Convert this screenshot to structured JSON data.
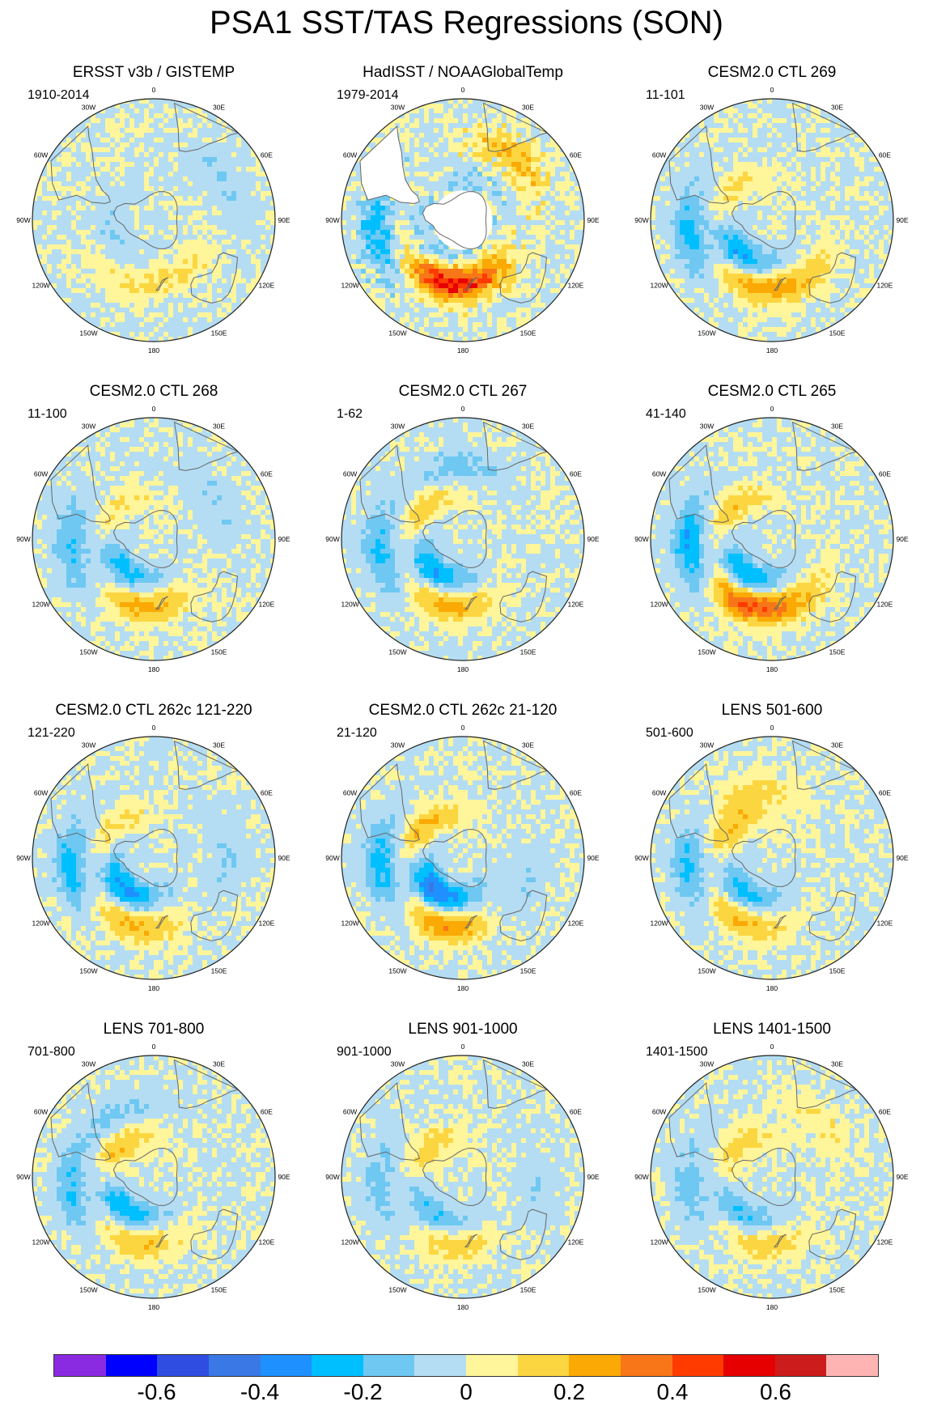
{
  "title": "PSA1 SST/TAS Regressions (SON)",
  "longitude_labels": [
    "0",
    "30E",
    "60E",
    "90E",
    "120E",
    "150E",
    "180",
    "150W",
    "120W",
    "90W",
    "60W",
    "30W"
  ],
  "panels": [
    {
      "title": "ERSST v3b / GISTEMP",
      "years": "1910-2014",
      "dataset": "ersst",
      "anomaly_centers": [
        {
          "lon": 210,
          "lat": -40,
          "value": 0.1
        },
        {
          "lon": 250,
          "lat": -55,
          "value": -0.1
        },
        {
          "lon": 60,
          "lat": -30,
          "value": -0.1
        },
        {
          "lon": 150,
          "lat": -45,
          "value": 0.1
        }
      ]
    },
    {
      "title": "HadISST / NOAAGlobalTemp",
      "years": "1979-2014",
      "dataset": "hadisst",
      "anomaly_centers": [
        {
          "lon": 200,
          "lat": -40,
          "value": 0.35
        },
        {
          "lon": 170,
          "lat": -45,
          "value": 0.3
        },
        {
          "lon": 260,
          "lat": -25,
          "value": -0.25
        },
        {
          "lon": 20,
          "lat": -60,
          "value": -0.1
        },
        {
          "lon": 40,
          "lat": -30,
          "value": 0.2
        },
        {
          "lon": 230,
          "lat": -60,
          "value": -0.15
        }
      ]
    },
    {
      "title": "CESM2.0 CTL 269",
      "years": "11-101",
      "dataset": "cesm",
      "anomaly_centers": [
        {
          "lon": 225,
          "lat": -55,
          "value": -0.35
        },
        {
          "lon": 200,
          "lat": -40,
          "value": 0.25
        },
        {
          "lon": 260,
          "lat": -28,
          "value": -0.25
        },
        {
          "lon": 300,
          "lat": -55,
          "value": 0.15
        },
        {
          "lon": 150,
          "lat": -40,
          "value": 0.15
        }
      ]
    },
    {
      "title": "CESM2.0 CTL 268",
      "years": "11-100",
      "dataset": "cesm",
      "anomaly_centers": [
        {
          "lon": 230,
          "lat": -58,
          "value": -0.3
        },
        {
          "lon": 190,
          "lat": -40,
          "value": 0.25
        },
        {
          "lon": 265,
          "lat": -28,
          "value": -0.2
        },
        {
          "lon": 300,
          "lat": -58,
          "value": 0.15
        },
        {
          "lon": 60,
          "lat": -35,
          "value": -0.1
        }
      ]
    },
    {
      "title": "CESM2.0 CTL 267",
      "years": "1-62",
      "dataset": "cesm",
      "anomaly_centers": [
        {
          "lon": 228,
          "lat": -58,
          "value": -0.35
        },
        {
          "lon": 195,
          "lat": -40,
          "value": 0.25
        },
        {
          "lon": 262,
          "lat": -28,
          "value": -0.22
        },
        {
          "lon": 300,
          "lat": -55,
          "value": 0.2
        },
        {
          "lon": 355,
          "lat": -35,
          "value": -0.15
        }
      ]
    },
    {
      "title": "CESM2.0 CTL 265",
      "years": "41-140",
      "dataset": "cesm",
      "anomaly_centers": [
        {
          "lon": 225,
          "lat": -57,
          "value": -0.35
        },
        {
          "lon": 205,
          "lat": -38,
          "value": 0.4
        },
        {
          "lon": 265,
          "lat": -28,
          "value": -0.3
        },
        {
          "lon": 300,
          "lat": -55,
          "value": 0.2
        },
        {
          "lon": 160,
          "lat": -40,
          "value": 0.15
        }
      ]
    },
    {
      "title": "CESM2.0 CTL 262c 121-220",
      "years": "121-220",
      "dataset": "cesm",
      "anomaly_centers": [
        {
          "lon": 228,
          "lat": -58,
          "value": -0.35
        },
        {
          "lon": 200,
          "lat": -38,
          "value": 0.25
        },
        {
          "lon": 262,
          "lat": -28,
          "value": -0.25
        },
        {
          "lon": 300,
          "lat": -55,
          "value": 0.15
        },
        {
          "lon": 85,
          "lat": -35,
          "value": -0.1
        }
      ]
    },
    {
      "title": "CESM2.0 CTL 262c 21-120",
      "years": "21-120",
      "dataset": "cesm",
      "anomaly_centers": [
        {
          "lon": 225,
          "lat": -58,
          "value": -0.45
        },
        {
          "lon": 195,
          "lat": -38,
          "value": 0.3
        },
        {
          "lon": 265,
          "lat": -28,
          "value": -0.25
        },
        {
          "lon": 305,
          "lat": -55,
          "value": 0.25
        },
        {
          "lon": 120,
          "lat": -40,
          "value": -0.1
        }
      ]
    },
    {
      "title": "LENS 501-600",
      "years": "501-600",
      "dataset": "lens",
      "anomaly_centers": [
        {
          "lon": 228,
          "lat": -57,
          "value": -0.3
        },
        {
          "lon": 210,
          "lat": -38,
          "value": 0.25
        },
        {
          "lon": 262,
          "lat": -28,
          "value": -0.22
        },
        {
          "lon": 300,
          "lat": -55,
          "value": 0.2
        },
        {
          "lon": 340,
          "lat": -40,
          "value": 0.15
        }
      ]
    },
    {
      "title": "LENS 701-800",
      "years": "701-800",
      "dataset": "lens",
      "anomaly_centers": [
        {
          "lon": 230,
          "lat": -58,
          "value": -0.35
        },
        {
          "lon": 195,
          "lat": -40,
          "value": 0.22
        },
        {
          "lon": 262,
          "lat": -28,
          "value": -0.2
        },
        {
          "lon": 300,
          "lat": -58,
          "value": 0.25
        },
        {
          "lon": 330,
          "lat": -35,
          "value": -0.12
        }
      ]
    },
    {
      "title": "LENS 901-1000",
      "years": "901-1000",
      "dataset": "lens",
      "anomaly_centers": [
        {
          "lon": 225,
          "lat": -55,
          "value": -0.25
        },
        {
          "lon": 190,
          "lat": -40,
          "value": 0.18
        },
        {
          "lon": 265,
          "lat": -28,
          "value": -0.15
        },
        {
          "lon": 300,
          "lat": -58,
          "value": 0.18
        },
        {
          "lon": 100,
          "lat": -35,
          "value": -0.08
        }
      ]
    },
    {
      "title": "LENS 1401-1500",
      "years": "1401-1500",
      "dataset": "lens",
      "anomaly_centers": [
        {
          "lon": 225,
          "lat": -55,
          "value": -0.25
        },
        {
          "lon": 190,
          "lat": -40,
          "value": 0.18
        },
        {
          "lon": 265,
          "lat": -28,
          "value": -0.15
        },
        {
          "lon": 300,
          "lat": -58,
          "value": 0.18
        },
        {
          "lon": 40,
          "lat": -35,
          "value": 0.1
        }
      ]
    }
  ],
  "colorbar": {
    "colors": [
      "#8a2be2",
      "#0000ff",
      "#2f4de0",
      "#3a78e6",
      "#1e90ff",
      "#00bfff",
      "#6ec8f2",
      "#b4ddf3",
      "#fff59a",
      "#fcd641",
      "#fba905",
      "#f87617",
      "#ff3b00",
      "#e60000",
      "#cd1c1c",
      "#ffb4b4"
    ],
    "labels": [
      "-0.6",
      "-0.4",
      "-0.2",
      "0",
      "0.2",
      "0.4",
      "0.6"
    ],
    "label_boundaries": [
      -0.6,
      -0.4,
      -0.2,
      0,
      0.2,
      0.4,
      0.6
    ],
    "range": [
      -0.8,
      0.8
    ],
    "step": 0.1
  }
}
